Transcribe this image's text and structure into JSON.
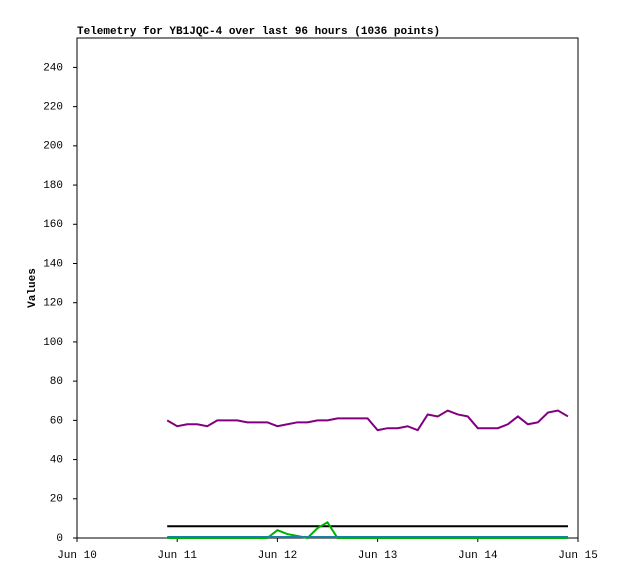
{
  "chart_data": {
    "type": "line",
    "title": "Telemetry for YB1JQC-4 over last 96 hours (1036 points)",
    "y_label": "Values",
    "x": [
      10.9,
      11.0,
      11.1,
      11.2,
      11.3,
      11.4,
      11.5,
      11.6,
      11.7,
      11.8,
      11.9,
      12.0,
      12.1,
      12.2,
      12.3,
      12.4,
      12.5,
      12.6,
      12.7,
      12.8,
      12.9,
      13.0,
      13.1,
      13.2,
      13.3,
      13.4,
      13.5,
      13.6,
      13.7,
      13.8,
      13.9,
      14.0,
      14.1,
      14.2,
      14.3,
      14.4,
      14.5,
      14.6,
      14.7,
      14.8,
      14.9
    ],
    "series": [
      {
        "color": "#000000",
        "values": [
          6,
          6,
          6,
          6,
          6,
          6,
          6,
          6,
          6,
          6,
          6,
          6,
          6,
          6,
          6,
          6,
          6,
          6,
          6,
          6,
          6,
          6,
          6,
          6,
          6,
          6,
          6,
          6,
          6,
          6,
          6,
          6,
          6,
          6,
          6,
          6,
          6,
          6,
          6,
          6,
          6
        ]
      },
      {
        "color": "#800080",
        "values": [
          60,
          57,
          58,
          58,
          57,
          60,
          60,
          60,
          59,
          59,
          59,
          57,
          58,
          59,
          59,
          60,
          60,
          61,
          61,
          61,
          61,
          55,
          56,
          56,
          57,
          55,
          63,
          62,
          65,
          63,
          62,
          56,
          56,
          56,
          58,
          62,
          58,
          59,
          64,
          65,
          62
        ]
      },
      {
        "color": "#00b000",
        "values": [
          0,
          0,
          0,
          0,
          0,
          0,
          0,
          0,
          0,
          0,
          0,
          4,
          2,
          1,
          0,
          5,
          8,
          0,
          0,
          0,
          0,
          0,
          0,
          0,
          0,
          0,
          0,
          0,
          0,
          0,
          0,
          0,
          0,
          0,
          0,
          0,
          0,
          0,
          0,
          0,
          0
        ]
      },
      {
        "color": "#1a7fa8",
        "values": [
          0.5,
          0.5,
          0.5,
          0.5,
          0.5,
          0.5,
          0.5,
          0.5,
          0.5,
          0.5,
          0.5,
          0.5,
          0.5,
          0.5,
          0.5,
          0.5,
          0.5,
          0.5,
          0.5,
          0.5,
          0.5,
          0.5,
          0.5,
          0.5,
          0.5,
          0.5,
          0.5,
          0.5,
          0.5,
          0.5,
          0.5,
          0.5,
          0.5,
          0.5,
          0.5,
          0.5,
          0.5,
          0.5,
          0.5,
          0.5,
          0.5
        ]
      }
    ],
    "xlim": [
      10,
      15
    ],
    "xticks": [
      {
        "value": 10,
        "label": "Jun 10"
      },
      {
        "value": 11,
        "label": "Jun 11"
      },
      {
        "value": 12,
        "label": "Jun 12"
      },
      {
        "value": 13,
        "label": "Jun 13"
      },
      {
        "value": 14,
        "label": "Jun 14"
      },
      {
        "value": 15,
        "label": "Jun 15"
      }
    ],
    "ylim": [
      0,
      255
    ],
    "yticks": [
      0,
      20,
      40,
      60,
      80,
      100,
      120,
      140,
      160,
      180,
      200,
      220,
      240
    ],
    "grid": false
  }
}
